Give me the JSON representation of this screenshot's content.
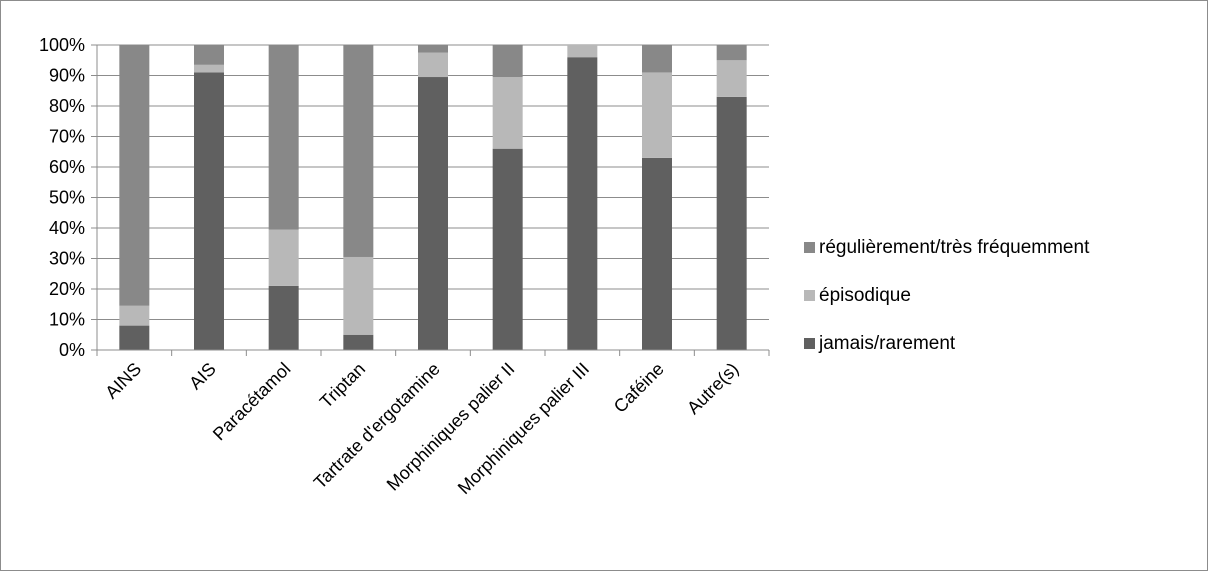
{
  "chart_data": {
    "type": "bar",
    "stacked": true,
    "percent_stacked": true,
    "categories": [
      "AINS",
      "AIS",
      "Paracétamol",
      "Triptan",
      "Tartrate d'ergotamine",
      "Morphiniques palier II",
      "Morphiniques palier III",
      "Caféine",
      "Autre(s)"
    ],
    "series": [
      {
        "name": "jamais/rarement",
        "color": "#606060",
        "values": [
          8,
          91,
          21,
          5,
          89.5,
          66,
          96,
          63,
          83
        ]
      },
      {
        "name": "épisodique",
        "color": "#b8b8b8",
        "values": [
          6.5,
          2.5,
          18.5,
          25.5,
          8,
          23.5,
          4,
          28,
          12
        ]
      },
      {
        "name": "régulièrement/très fréquemment",
        "color": "#888888",
        "values": [
          85.5,
          6.5,
          60.5,
          69.5,
          2.5,
          10.5,
          0,
          9,
          5
        ]
      }
    ],
    "y_ticks": [
      "0%",
      "10%",
      "20%",
      "30%",
      "40%",
      "50%",
      "60%",
      "70%",
      "80%",
      "90%",
      "100%"
    ],
    "ylim": [
      0,
      100
    ],
    "grid": true,
    "legend_position": "right",
    "legend_order": [
      "régulièrement/très fréquemment",
      "épisodique",
      "jamais/rarement"
    ],
    "title": "",
    "xlabel": "",
    "ylabel": ""
  }
}
